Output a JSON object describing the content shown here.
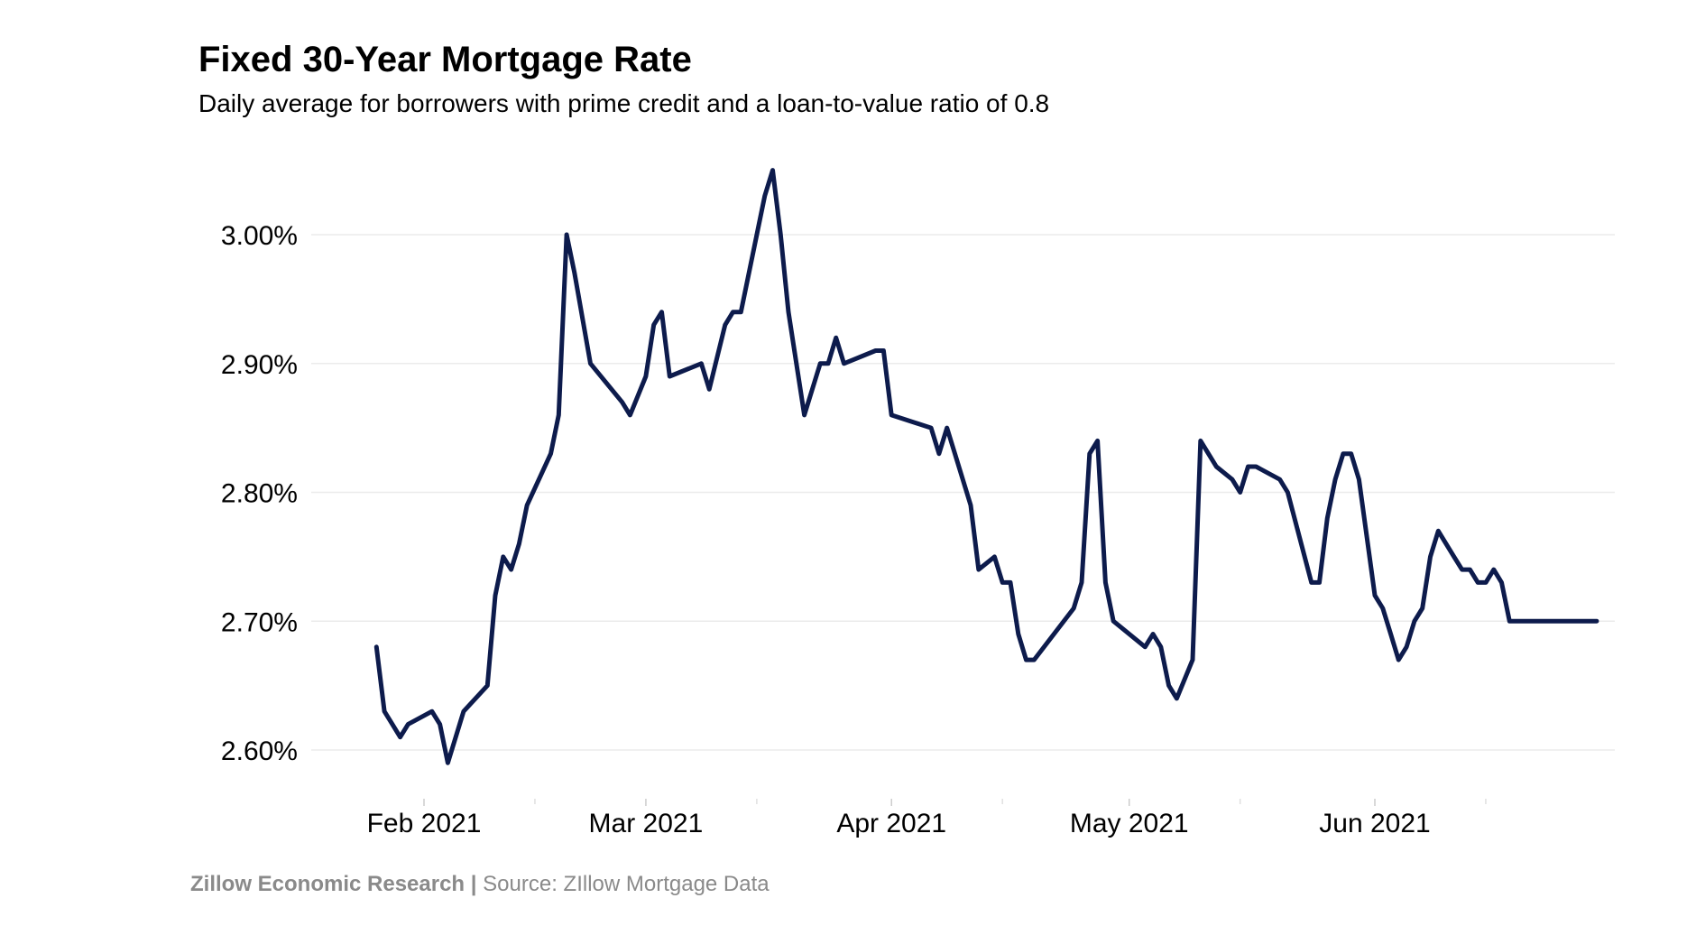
{
  "chart_data": {
    "type": "line",
    "title": "Fixed 30-Year Mortgage Rate",
    "subtitle": "Daily average for borrowers with prime credit and a loan-to-value ratio of 0.8",
    "xlabel": "",
    "ylabel": "",
    "x_tick_labels": [
      "Feb 2021",
      "Mar 2021",
      "Apr 2021",
      "May 2021",
      "Jun 2021"
    ],
    "x_tick_dates": [
      "2021-02-01",
      "2021-03-01",
      "2021-04-01",
      "2021-05-01",
      "2021-06-01"
    ],
    "x_minor_tick_dates": [
      "2021-02-15",
      "2021-03-15",
      "2021-04-15",
      "2021-05-15",
      "2021-06-15"
    ],
    "y_tick_labels": [
      "2.60%",
      "2.70%",
      "2.80%",
      "2.90%",
      "3.00%"
    ],
    "y_ticks": [
      2.6,
      2.7,
      2.8,
      2.9,
      3.0
    ],
    "xlim": [
      "2021-01-05",
      "2021-06-30"
    ],
    "ylim": [
      2.57,
      3.07
    ],
    "grid": "horizontal",
    "legend": "none",
    "line_color": "#0d1b4c",
    "series": [
      {
        "x": [
          "2021-01-26",
          "2021-01-27",
          "2021-01-28",
          "2021-01-29",
          "2021-01-30",
          "2021-02-02",
          "2021-02-03",
          "2021-02-04",
          "2021-02-06",
          "2021-02-09",
          "2021-02-10",
          "2021-02-11",
          "2021-02-12",
          "2021-02-13",
          "2021-02-14",
          "2021-02-17",
          "2021-02-18",
          "2021-02-19",
          "2021-02-20",
          "2021-02-22",
          "2021-02-26",
          "2021-02-27",
          "2021-03-01",
          "2021-03-02",
          "2021-03-03",
          "2021-03-04",
          "2021-03-08",
          "2021-03-09",
          "2021-03-11",
          "2021-03-12",
          "2021-03-13",
          "2021-03-16",
          "2021-03-17",
          "2021-03-18",
          "2021-03-19",
          "2021-03-21",
          "2021-03-23",
          "2021-03-24",
          "2021-03-25",
          "2021-03-26",
          "2021-03-30",
          "2021-03-31",
          "2021-04-01",
          "2021-04-06",
          "2021-04-07",
          "2021-04-08",
          "2021-04-09",
          "2021-04-11",
          "2021-04-12",
          "2021-04-14",
          "2021-04-15",
          "2021-04-16",
          "2021-04-17",
          "2021-04-18",
          "2021-04-19",
          "2021-04-24",
          "2021-04-25",
          "2021-04-26",
          "2021-04-27",
          "2021-04-28",
          "2021-04-29",
          "2021-05-03",
          "2021-05-04",
          "2021-05-05",
          "2021-05-06",
          "2021-05-07",
          "2021-05-09",
          "2021-05-10",
          "2021-05-12",
          "2021-05-14",
          "2021-05-15",
          "2021-05-16",
          "2021-05-17",
          "2021-05-20",
          "2021-05-21",
          "2021-05-24",
          "2021-05-25",
          "2021-05-26",
          "2021-05-27",
          "2021-05-28",
          "2021-05-29",
          "2021-05-30",
          "2021-06-01",
          "2021-06-02",
          "2021-06-03",
          "2021-06-04",
          "2021-06-05",
          "2021-06-06",
          "2021-06-07",
          "2021-06-08",
          "2021-06-09",
          "2021-06-10",
          "2021-06-11",
          "2021-06-12",
          "2021-06-13",
          "2021-06-14",
          "2021-06-15",
          "2021-06-16",
          "2021-06-17",
          "2021-06-18",
          "2021-06-19",
          "2021-06-20",
          "2021-06-21",
          "2021-06-22",
          "2021-06-23",
          "2021-06-24",
          "2021-06-25",
          "2021-06-26",
          "2021-06-27",
          "2021-06-28",
          "2021-06-29"
        ],
        "y": [
          2.68,
          2.63,
          2.62,
          2.61,
          2.62,
          2.63,
          2.62,
          2.59,
          2.63,
          2.65,
          2.72,
          2.75,
          2.74,
          2.76,
          2.79,
          2.83,
          2.86,
          3.0,
          2.97,
          2.9,
          2.87,
          2.86,
          2.89,
          2.93,
          2.94,
          2.89,
          2.9,
          2.88,
          2.93,
          2.94,
          2.94,
          3.03,
          3.05,
          3.0,
          2.94,
          2.86,
          2.9,
          2.9,
          2.92,
          2.9,
          2.91,
          2.91,
          2.86,
          2.85,
          2.83,
          2.85,
          2.83,
          2.79,
          2.74,
          2.75,
          2.73,
          2.73,
          2.69,
          2.67,
          2.67,
          2.71,
          2.73,
          2.83,
          2.84,
          2.73,
          2.7,
          2.68,
          2.69,
          2.68,
          2.65,
          2.64,
          2.67,
          2.84,
          2.82,
          2.81,
          2.8,
          2.82,
          2.82,
          2.81,
          2.8,
          2.73,
          2.73,
          2.78,
          2.81,
          2.83,
          2.83,
          2.81,
          2.72,
          2.71,
          2.69,
          2.67,
          2.68,
          2.7,
          2.71,
          2.75,
          2.77,
          2.76,
          2.75,
          2.74,
          2.74,
          2.73,
          2.73,
          2.74,
          2.73,
          2.7,
          2.7,
          2.7,
          2.7,
          2.7,
          2.7,
          2.7,
          2.7,
          2.7,
          2.7,
          2.7,
          2.7
        ]
      }
    ]
  },
  "footer": {
    "org": "Zillow Economic Research |",
    "source": " Source: ZIllow Mortgage Data"
  }
}
